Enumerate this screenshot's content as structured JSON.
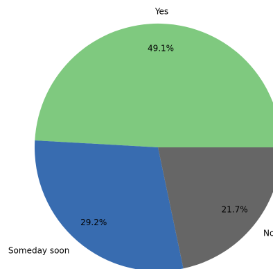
{
  "chart_data": {
    "type": "pie",
    "categories": [
      "Yes",
      "Someday soon",
      "No"
    ],
    "values": [
      49.1,
      29.2,
      21.7
    ],
    "value_labels": [
      "49.1%",
      "29.2%",
      "21.7%"
    ],
    "colors": [
      "#7fc97f",
      "#386cb0",
      "#666666"
    ],
    "start_angle_deg": 0,
    "direction": "counterclockwise",
    "title": ""
  }
}
